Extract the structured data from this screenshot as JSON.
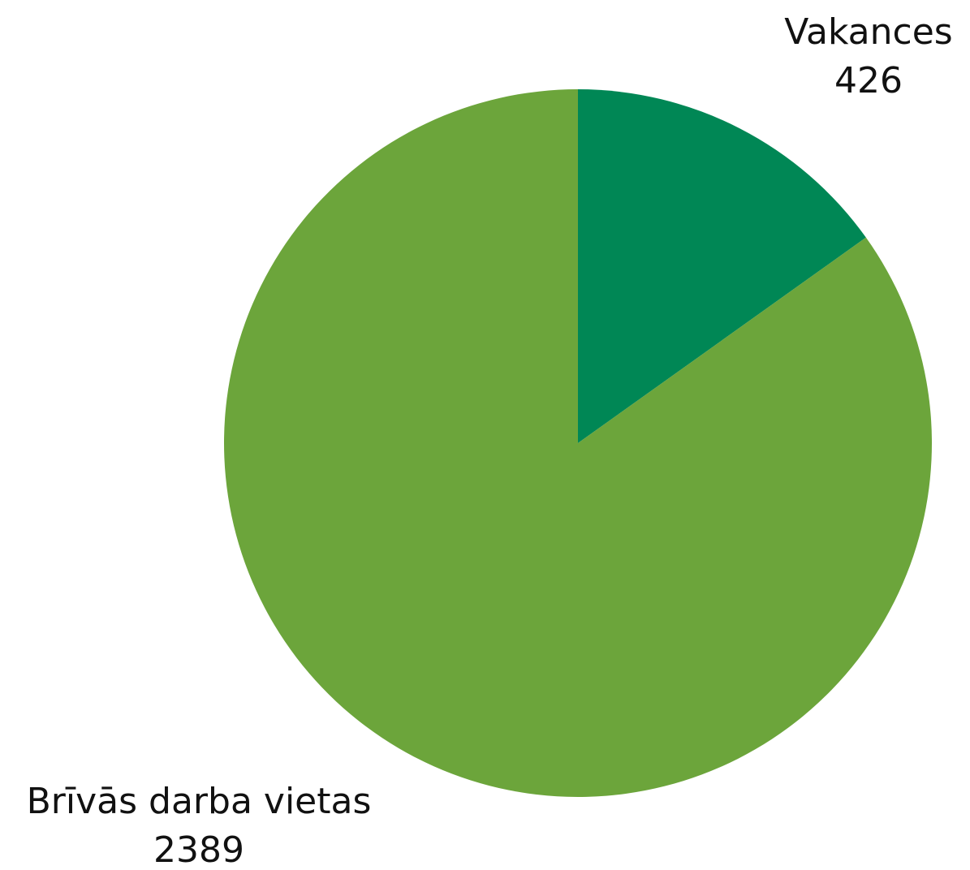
{
  "chart_data": {
    "type": "pie",
    "categories": [
      "Vakances",
      "Brīvās darba vietas"
    ],
    "values": [
      426,
      2389
    ],
    "colors": [
      "#008755",
      "#6ca53b"
    ]
  }
}
